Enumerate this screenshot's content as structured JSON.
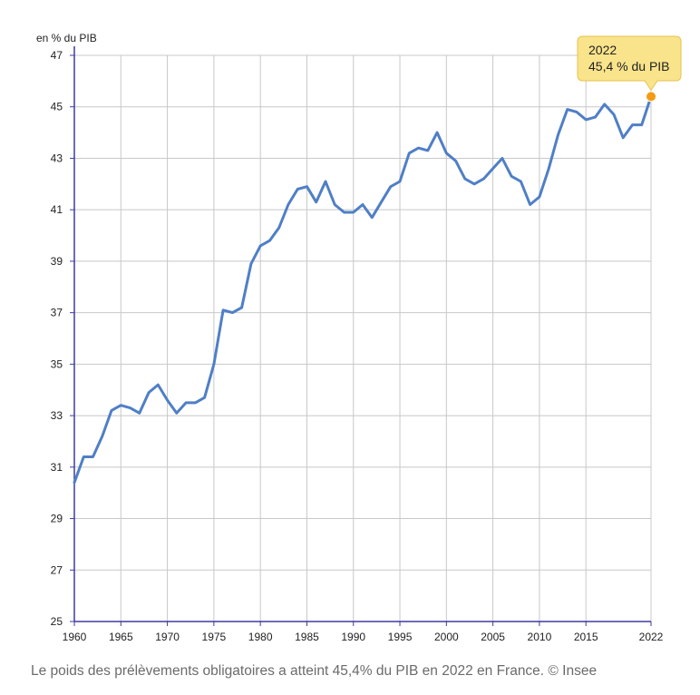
{
  "caption": "Le poids des prélèvements obligatoires a atteint 45,4% du PIB en 2022 en France. © Insee",
  "chart_data": {
    "type": "line",
    "title": "",
    "xlabel": "",
    "ylabel": "en % du PIB",
    "xlim": [
      1960,
      2022
    ],
    "ylim": [
      25,
      47
    ],
    "x_ticks": [
      "1960",
      "1965",
      "1970",
      "1975",
      "1980",
      "1985",
      "1990",
      "1995",
      "2000",
      "2005",
      "2010",
      "2015",
      "2022"
    ],
    "y_ticks": [
      "25",
      "27",
      "29",
      "31",
      "33",
      "35",
      "37",
      "39",
      "41",
      "43",
      "45",
      "47"
    ],
    "grid": true,
    "colors": {
      "line": "#4f7fc6",
      "axis": "#3f3aa0",
      "grid": "#c8c8c8",
      "highlight": "#f39c12",
      "tooltip_bg": "#f9e48c",
      "tooltip_border": "#e6c24d"
    },
    "highlight": {
      "x": 2022,
      "y": 45.4,
      "label_year": "2022",
      "label_value": "45,4 % du PIB"
    },
    "series": [
      {
        "x": [
          1960,
          1961,
          1962,
          1963,
          1964,
          1965,
          1966,
          1967,
          1968,
          1969,
          1970,
          1971,
          1972,
          1973,
          1974,
          1975,
          1976,
          1977,
          1978,
          1979,
          1980,
          1981,
          1982,
          1983,
          1984,
          1985,
          1986,
          1987,
          1988,
          1989,
          1990,
          1991,
          1992,
          1993,
          1994,
          1995,
          1996,
          1997,
          1998,
          1999,
          2000,
          2001,
          2002,
          2003,
          2004,
          2005,
          2006,
          2007,
          2008,
          2009,
          2010,
          2011,
          2012,
          2013,
          2014,
          2015,
          2016,
          2017,
          2018,
          2019,
          2020,
          2021,
          2022
        ],
        "y": [
          30.4,
          31.4,
          31.4,
          32.2,
          33.2,
          33.4,
          33.3,
          33.1,
          33.9,
          34.2,
          33.6,
          33.1,
          33.5,
          33.5,
          33.7,
          35.0,
          37.1,
          37.0,
          37.2,
          38.9,
          39.6,
          39.8,
          40.3,
          41.2,
          41.8,
          41.9,
          41.3,
          42.1,
          41.2,
          40.9,
          40.9,
          41.2,
          40.7,
          41.3,
          41.9,
          42.1,
          43.2,
          43.4,
          43.3,
          44.0,
          43.2,
          42.9,
          42.2,
          42.0,
          42.2,
          42.6,
          43.0,
          42.3,
          42.1,
          41.2,
          41.5,
          42.6,
          43.9,
          44.9,
          44.8,
          44.5,
          44.6,
          45.1,
          44.7,
          43.8,
          44.3,
          44.3,
          45.4
        ]
      }
    ]
  }
}
